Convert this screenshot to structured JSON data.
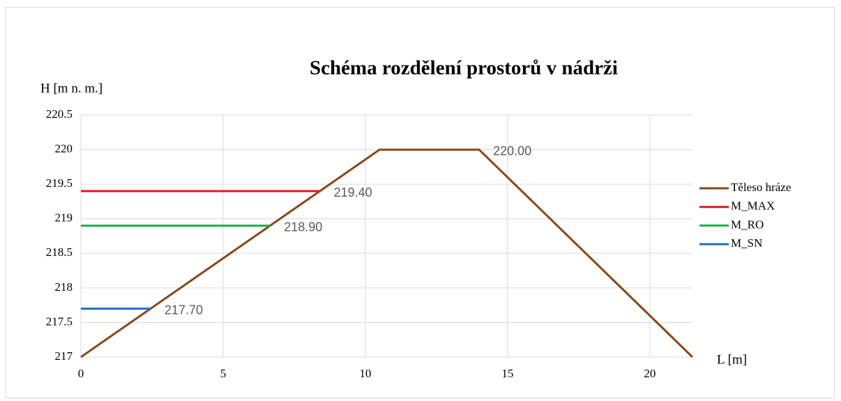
{
  "chart_data": {
    "type": "line",
    "title": "Schéma rozdělení prostorů v nádrži",
    "y_label": "H [m n. m.]",
    "x_label": "L  [m]",
    "xlim": [
      0,
      21.5
    ],
    "xticks": [
      0,
      5,
      10,
      15,
      20
    ],
    "ylim": [
      217,
      220.5
    ],
    "yticks": [
      217,
      217.5,
      218,
      218.5,
      219,
      219.5,
      220,
      220.5
    ],
    "grid": true,
    "legend": "right",
    "series": [
      {
        "name": "Těleso hráze",
        "color": "#8b4513",
        "x": [
          0,
          10.5,
          14,
          21.5
        ],
        "values": [
          217,
          220,
          220,
          217
        ],
        "value_labels": [
          null,
          null,
          "220.00",
          null
        ]
      },
      {
        "name": "M_MAX",
        "color": "#e8141c",
        "x": [
          0,
          8.4
        ],
        "values": [
          219.4,
          219.4
        ],
        "value_labels": [
          null,
          "219.40"
        ]
      },
      {
        "name": "M_RO",
        "color": "#1ab04e",
        "x": [
          0,
          6.65
        ],
        "values": [
          218.9,
          218.9
        ],
        "value_labels": [
          null,
          "218.90"
        ]
      },
      {
        "name": "M_SN",
        "color": "#1f6fb8",
        "x": [
          0,
          2.45
        ],
        "values": [
          217.7,
          217.7
        ],
        "value_labels": [
          null,
          "217.70"
        ]
      }
    ]
  }
}
